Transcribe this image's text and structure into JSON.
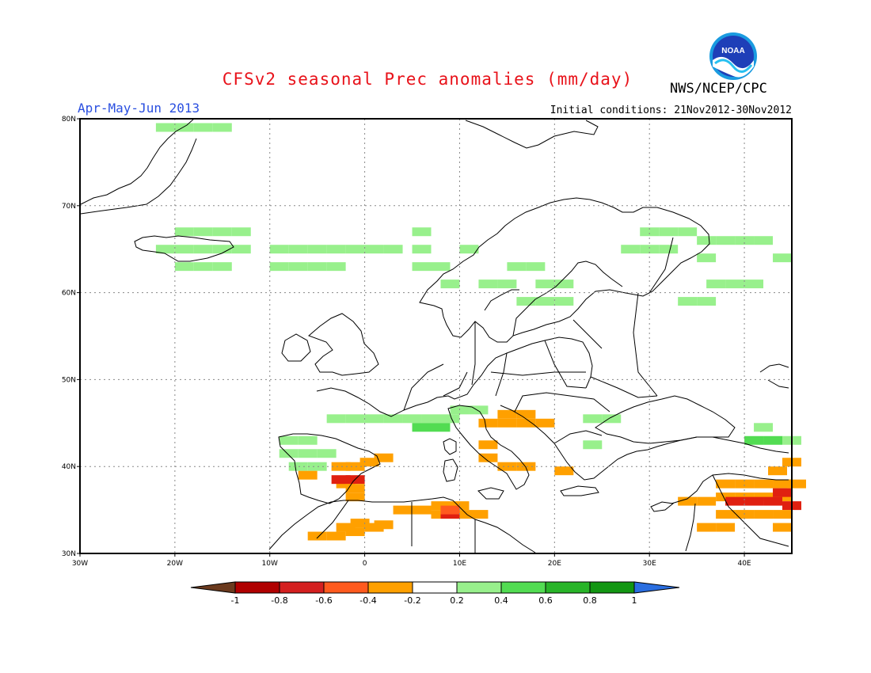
{
  "title": "CFSv2 seasonal Prec anomalies (mm/day)",
  "agency": "NWS/NCEP/CPC",
  "season": "Apr-May-Jun 2013",
  "initial_conditions": "Initial conditions: 21Nov2012-30Nov2012",
  "logo_text": "NOAA",
  "lat_labels": [
    "80N",
    "70N",
    "60N",
    "50N",
    "40N",
    "30N"
  ],
  "lon_labels": [
    "30W",
    "20W",
    "10W",
    "0",
    "10E",
    "20E",
    "30E",
    "40E"
  ],
  "colorbar": {
    "labels": [
      "-1",
      "-0.8",
      "-0.6",
      "-0.4",
      "-0.2",
      "0.2",
      "0.4",
      "0.6",
      "0.8",
      "1"
    ],
    "colors": [
      "#6b3a1e",
      "#b00000",
      "#d42020",
      "#ff5a1e",
      "#ffa000",
      "#ffffff",
      "#98f08c",
      "#52dc52",
      "#28b428",
      "#129612",
      "#2a6ee0"
    ]
  },
  "map": {
    "lon_range": [
      -30,
      45
    ],
    "lat_range": [
      30,
      80
    ],
    "grid_step_deg": 10,
    "cell_deg": 2,
    "anomaly_colors": {
      "o": "#ffa000",
      "r": "#ff5a1e",
      "R": "#e02010",
      "g": "#98f08c",
      "G": "#52dc52"
    },
    "anomaly_cells": [
      [
        -21.0,
        79.0,
        "g"
      ],
      [
        -19.0,
        79.0,
        "g"
      ],
      [
        -17.0,
        79.0,
        "g"
      ],
      [
        -15.0,
        79.0,
        "g"
      ],
      [
        -19.0,
        67.0,
        "g"
      ],
      [
        -17.0,
        67.0,
        "g"
      ],
      [
        -15.0,
        67.0,
        "g"
      ],
      [
        -13.0,
        67.0,
        "g"
      ],
      [
        -21.0,
        65.0,
        "g"
      ],
      [
        -19.0,
        65.0,
        "g"
      ],
      [
        -17.0,
        65.0,
        "g"
      ],
      [
        -15.0,
        65.0,
        "g"
      ],
      [
        -13.0,
        65.0,
        "g"
      ],
      [
        -9.0,
        65.0,
        "g"
      ],
      [
        -7.0,
        65.0,
        "g"
      ],
      [
        -5.0,
        65.0,
        "g"
      ],
      [
        -3.0,
        65.0,
        "g"
      ],
      [
        -1.0,
        65.0,
        "g"
      ],
      [
        1.0,
        65.0,
        "g"
      ],
      [
        3.0,
        65.0,
        "g"
      ],
      [
        -19.0,
        63.0,
        "g"
      ],
      [
        -17.0,
        63.0,
        "g"
      ],
      [
        -15.0,
        63.0,
        "g"
      ],
      [
        -9.0,
        63.0,
        "g"
      ],
      [
        -7.0,
        63.0,
        "g"
      ],
      [
        -5.0,
        63.0,
        "g"
      ],
      [
        -3.0,
        63.0,
        "g"
      ],
      [
        6.0,
        67.0,
        "g"
      ],
      [
        6.0,
        65.0,
        "g"
      ],
      [
        6.0,
        63.0,
        "g"
      ],
      [
        8.0,
        63.0,
        "g"
      ],
      [
        11.0,
        65.0,
        "g"
      ],
      [
        16.0,
        63.0,
        "g"
      ],
      [
        18.0,
        63.0,
        "g"
      ],
      [
        13.0,
        61.0,
        "g"
      ],
      [
        15.0,
        61.0,
        "g"
      ],
      [
        19.0,
        61.0,
        "g"
      ],
      [
        21.0,
        61.0,
        "g"
      ],
      [
        9.0,
        61.0,
        "g"
      ],
      [
        17.0,
        59.0,
        "g"
      ],
      [
        19.0,
        59.0,
        "g"
      ],
      [
        21.0,
        59.0,
        "g"
      ],
      [
        36.0,
        66.0,
        "g"
      ],
      [
        38.0,
        66.0,
        "g"
      ],
      [
        40.0,
        66.0,
        "g"
      ],
      [
        42.0,
        66.0,
        "g"
      ],
      [
        36.0,
        64.0,
        "g"
      ],
      [
        30.0,
        67.0,
        "g"
      ],
      [
        32.0,
        67.0,
        "g"
      ],
      [
        34.0,
        67.0,
        "g"
      ],
      [
        28.0,
        65.0,
        "g"
      ],
      [
        30.0,
        65.0,
        "g"
      ],
      [
        32.0,
        65.0,
        "g"
      ],
      [
        37.0,
        61.0,
        "g"
      ],
      [
        39.0,
        61.0,
        "g"
      ],
      [
        41.0,
        61.0,
        "g"
      ],
      [
        34.0,
        59.0,
        "g"
      ],
      [
        36.0,
        59.0,
        "g"
      ],
      [
        44.0,
        64.0,
        "g"
      ],
      [
        -3.0,
        45.5,
        "g"
      ],
      [
        -1.0,
        45.5,
        "g"
      ],
      [
        1.0,
        45.5,
        "g"
      ],
      [
        3.0,
        45.5,
        "g"
      ],
      [
        5.0,
        45.5,
        "g"
      ],
      [
        7.0,
        45.5,
        "g"
      ],
      [
        9.0,
        45.5,
        "g"
      ],
      [
        6.0,
        44.5,
        "G"
      ],
      [
        8.0,
        44.5,
        "G"
      ],
      [
        10.0,
        46.5,
        "g"
      ],
      [
        12.0,
        46.5,
        "g"
      ],
      [
        -8.0,
        43.0,
        "g"
      ],
      [
        -6.0,
        43.0,
        "g"
      ],
      [
        -8.0,
        41.5,
        "g"
      ],
      [
        -6.0,
        41.5,
        "g"
      ],
      [
        -4.0,
        41.5,
        "g"
      ],
      [
        -7.0,
        40.0,
        "g"
      ],
      [
        -5.0,
        40.0,
        "g"
      ],
      [
        24.0,
        45.5,
        "g"
      ],
      [
        26.0,
        45.5,
        "g"
      ],
      [
        24.0,
        42.5,
        "g"
      ],
      [
        41.0,
        43.0,
        "G"
      ],
      [
        43.0,
        43.0,
        "G"
      ],
      [
        45.0,
        43.0,
        "g"
      ],
      [
        42.0,
        44.5,
        "g"
      ],
      [
        -6.0,
        39.0,
        "o"
      ],
      [
        -2.5,
        40.0,
        "o"
      ],
      [
        -1.0,
        40.0,
        "o"
      ],
      [
        0.5,
        40.5,
        "o"
      ],
      [
        2.0,
        41.0,
        "o"
      ],
      [
        -2.0,
        38.0,
        "o"
      ],
      [
        -1.0,
        36.5,
        "o"
      ],
      [
        -2.5,
        38.5,
        "R"
      ],
      [
        -1.0,
        38.5,
        "R"
      ],
      [
        -1.0,
        37.5,
        "o"
      ],
      [
        15.0,
        46.0,
        "o"
      ],
      [
        17.0,
        46.0,
        "o"
      ],
      [
        13.0,
        45.0,
        "o"
      ],
      [
        15.0,
        45.0,
        "o"
      ],
      [
        17.0,
        45.0,
        "o"
      ],
      [
        19.0,
        45.0,
        "o"
      ],
      [
        13.0,
        42.5,
        "o"
      ],
      [
        13.0,
        41.0,
        "o"
      ],
      [
        15.0,
        40.0,
        "o"
      ],
      [
        17.0,
        40.0,
        "o"
      ],
      [
        21.0,
        39.5,
        "o"
      ],
      [
        8.0,
        35.5,
        "o"
      ],
      [
        10.0,
        35.5,
        "o"
      ],
      [
        4.0,
        35.0,
        "o"
      ],
      [
        6.0,
        35.0,
        "o"
      ],
      [
        8.0,
        34.5,
        "o"
      ],
      [
        10.0,
        34.5,
        "o"
      ],
      [
        12.0,
        34.5,
        "o"
      ],
      [
        9.0,
        34.5,
        "R"
      ],
      [
        -5.0,
        32.0,
        "o"
      ],
      [
        -3.0,
        32.0,
        "o"
      ],
      [
        -1.0,
        32.5,
        "o"
      ],
      [
        -0.5,
        33.5,
        "o"
      ],
      [
        -2.0,
        33.0,
        "o"
      ],
      [
        1.0,
        33.0,
        "o"
      ],
      [
        2.0,
        33.3,
        "o"
      ],
      [
        9.0,
        35.0,
        "r"
      ],
      [
        34.0,
        36.0,
        "o"
      ],
      [
        36.0,
        36.0,
        "o"
      ],
      [
        38.0,
        38.0,
        "o"
      ],
      [
        40.0,
        38.0,
        "o"
      ],
      [
        42.0,
        38.0,
        "o"
      ],
      [
        44.0,
        38.0,
        "o"
      ],
      [
        38.0,
        36.5,
        "o"
      ],
      [
        40.0,
        36.5,
        "o"
      ],
      [
        42.0,
        36.5,
        "o"
      ],
      [
        44.0,
        36.5,
        "o"
      ],
      [
        39.0,
        36.0,
        "R"
      ],
      [
        41.0,
        36.0,
        "R"
      ],
      [
        43.0,
        36.0,
        "R"
      ],
      [
        45.0,
        35.5,
        "R"
      ],
      [
        44.0,
        37.0,
        "R"
      ],
      [
        38.0,
        34.5,
        "o"
      ],
      [
        40.0,
        34.5,
        "o"
      ],
      [
        42.0,
        34.5,
        "o"
      ],
      [
        44.0,
        34.5,
        "o"
      ],
      [
        36.0,
        33.0,
        "o"
      ],
      [
        38.0,
        33.0,
        "o"
      ],
      [
        44.0,
        33.0,
        "o"
      ],
      [
        43.5,
        39.5,
        "o"
      ],
      [
        45.0,
        40.5,
        "o"
      ],
      [
        45.5,
        38.0,
        "o"
      ]
    ]
  }
}
